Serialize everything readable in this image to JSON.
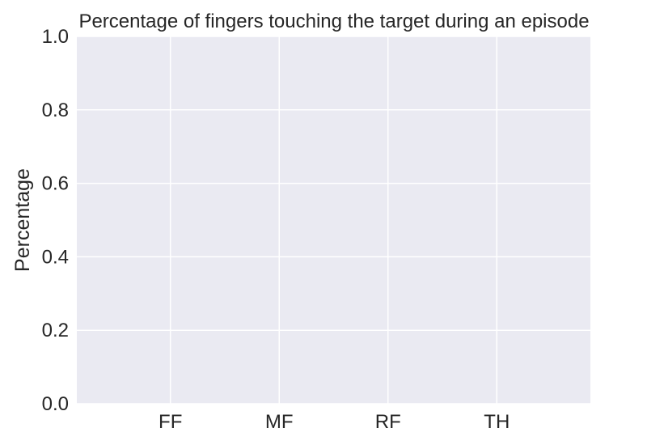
{
  "chart_data": {
    "type": "bar",
    "title": "Percentage of fingers touching the target during an episode",
    "xlabel": "",
    "ylabel": "Percentage",
    "categories": [
      "FF",
      "MF",
      "RF",
      "TH"
    ],
    "values": [
      0,
      0,
      0,
      0
    ],
    "ylim": [
      0,
      1
    ],
    "yticks": [
      0.0,
      0.2,
      0.4,
      0.6,
      0.8,
      1.0
    ],
    "ytick_labels": [
      "0.0",
      "0.2",
      "0.4",
      "0.6",
      "0.8",
      "1.0"
    ],
    "grid": true,
    "legend": "none",
    "colors": {
      "plot_background": "#EAEAF2",
      "grid": "#FFFFFF",
      "text": "#262626",
      "bar": "#4C72B0"
    }
  }
}
